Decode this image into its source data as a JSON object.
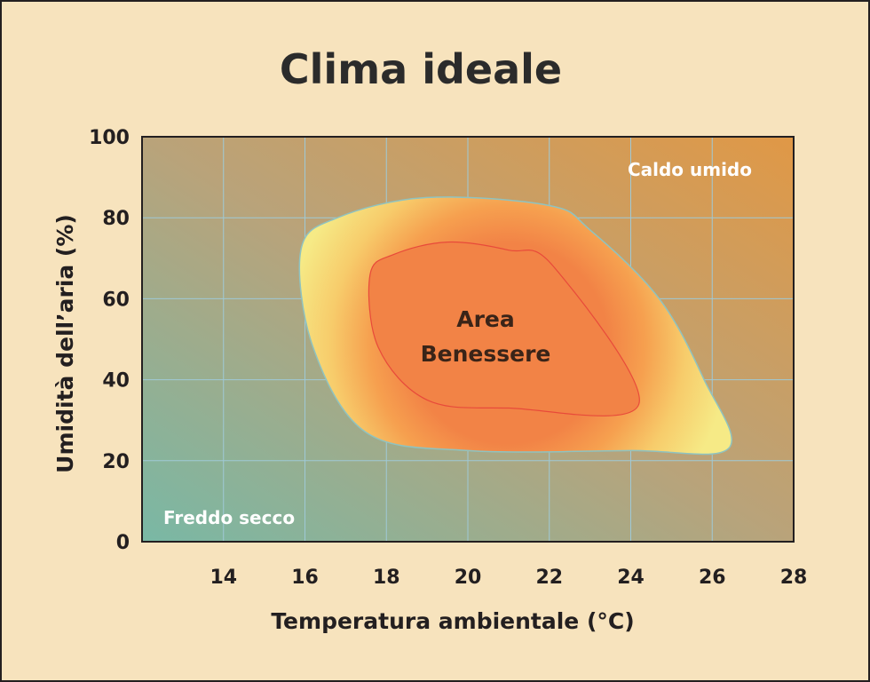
{
  "chart_data": {
    "type": "area",
    "title": "Clima ideale",
    "xlabel": "Temperatura ambientale (°C)",
    "ylabel": "Umidità dell’aria (%)",
    "xlim": [
      12,
      28
    ],
    "ylim": [
      0,
      100
    ],
    "x_ticks": [
      "14",
      "16",
      "18",
      "20",
      "22",
      "24",
      "26",
      "28"
    ],
    "y_ticks": [
      "0",
      "20",
      "40",
      "60",
      "80",
      "100"
    ],
    "grid": true,
    "regions": [
      {
        "label": "",
        "color": "#f6ea86",
        "points": [
          [
            15.9,
            72
          ],
          [
            16.8,
            80
          ],
          [
            19.0,
            85
          ],
          [
            22.0,
            83
          ],
          [
            23.0,
            77
          ],
          [
            24.7,
            60
          ],
          [
            25.8,
            40
          ],
          [
            26.4,
            23
          ],
          [
            24.0,
            22.5
          ],
          [
            20.0,
            22.5
          ],
          [
            17.5,
            27
          ],
          [
            16.2,
            48
          ]
        ]
      },
      {
        "label": "Area Benessere",
        "label_lines": [
          "Area",
          "Benessere"
        ],
        "color": "#f28346",
        "points": [
          [
            17.6,
            66
          ],
          [
            18.2,
            71
          ],
          [
            19.5,
            74
          ],
          [
            21.0,
            72
          ],
          [
            22.1,
            68
          ],
          [
            24.2,
            34
          ],
          [
            21.0,
            33
          ],
          [
            19.0,
            35
          ],
          [
            17.8,
            48
          ]
        ]
      }
    ],
    "annotations": [
      "Caldo umido",
      "Freddo secco"
    ],
    "colors": {
      "frame_bg": "#f7e3bd",
      "plot_top_right": "#e09846",
      "plot_bottom_left": "#79b8a5",
      "grid": "#9fc9d6",
      "outer_region": "#f6ea86",
      "inner_region": "#f28346",
      "inner_outline": "#e84a3a"
    }
  }
}
